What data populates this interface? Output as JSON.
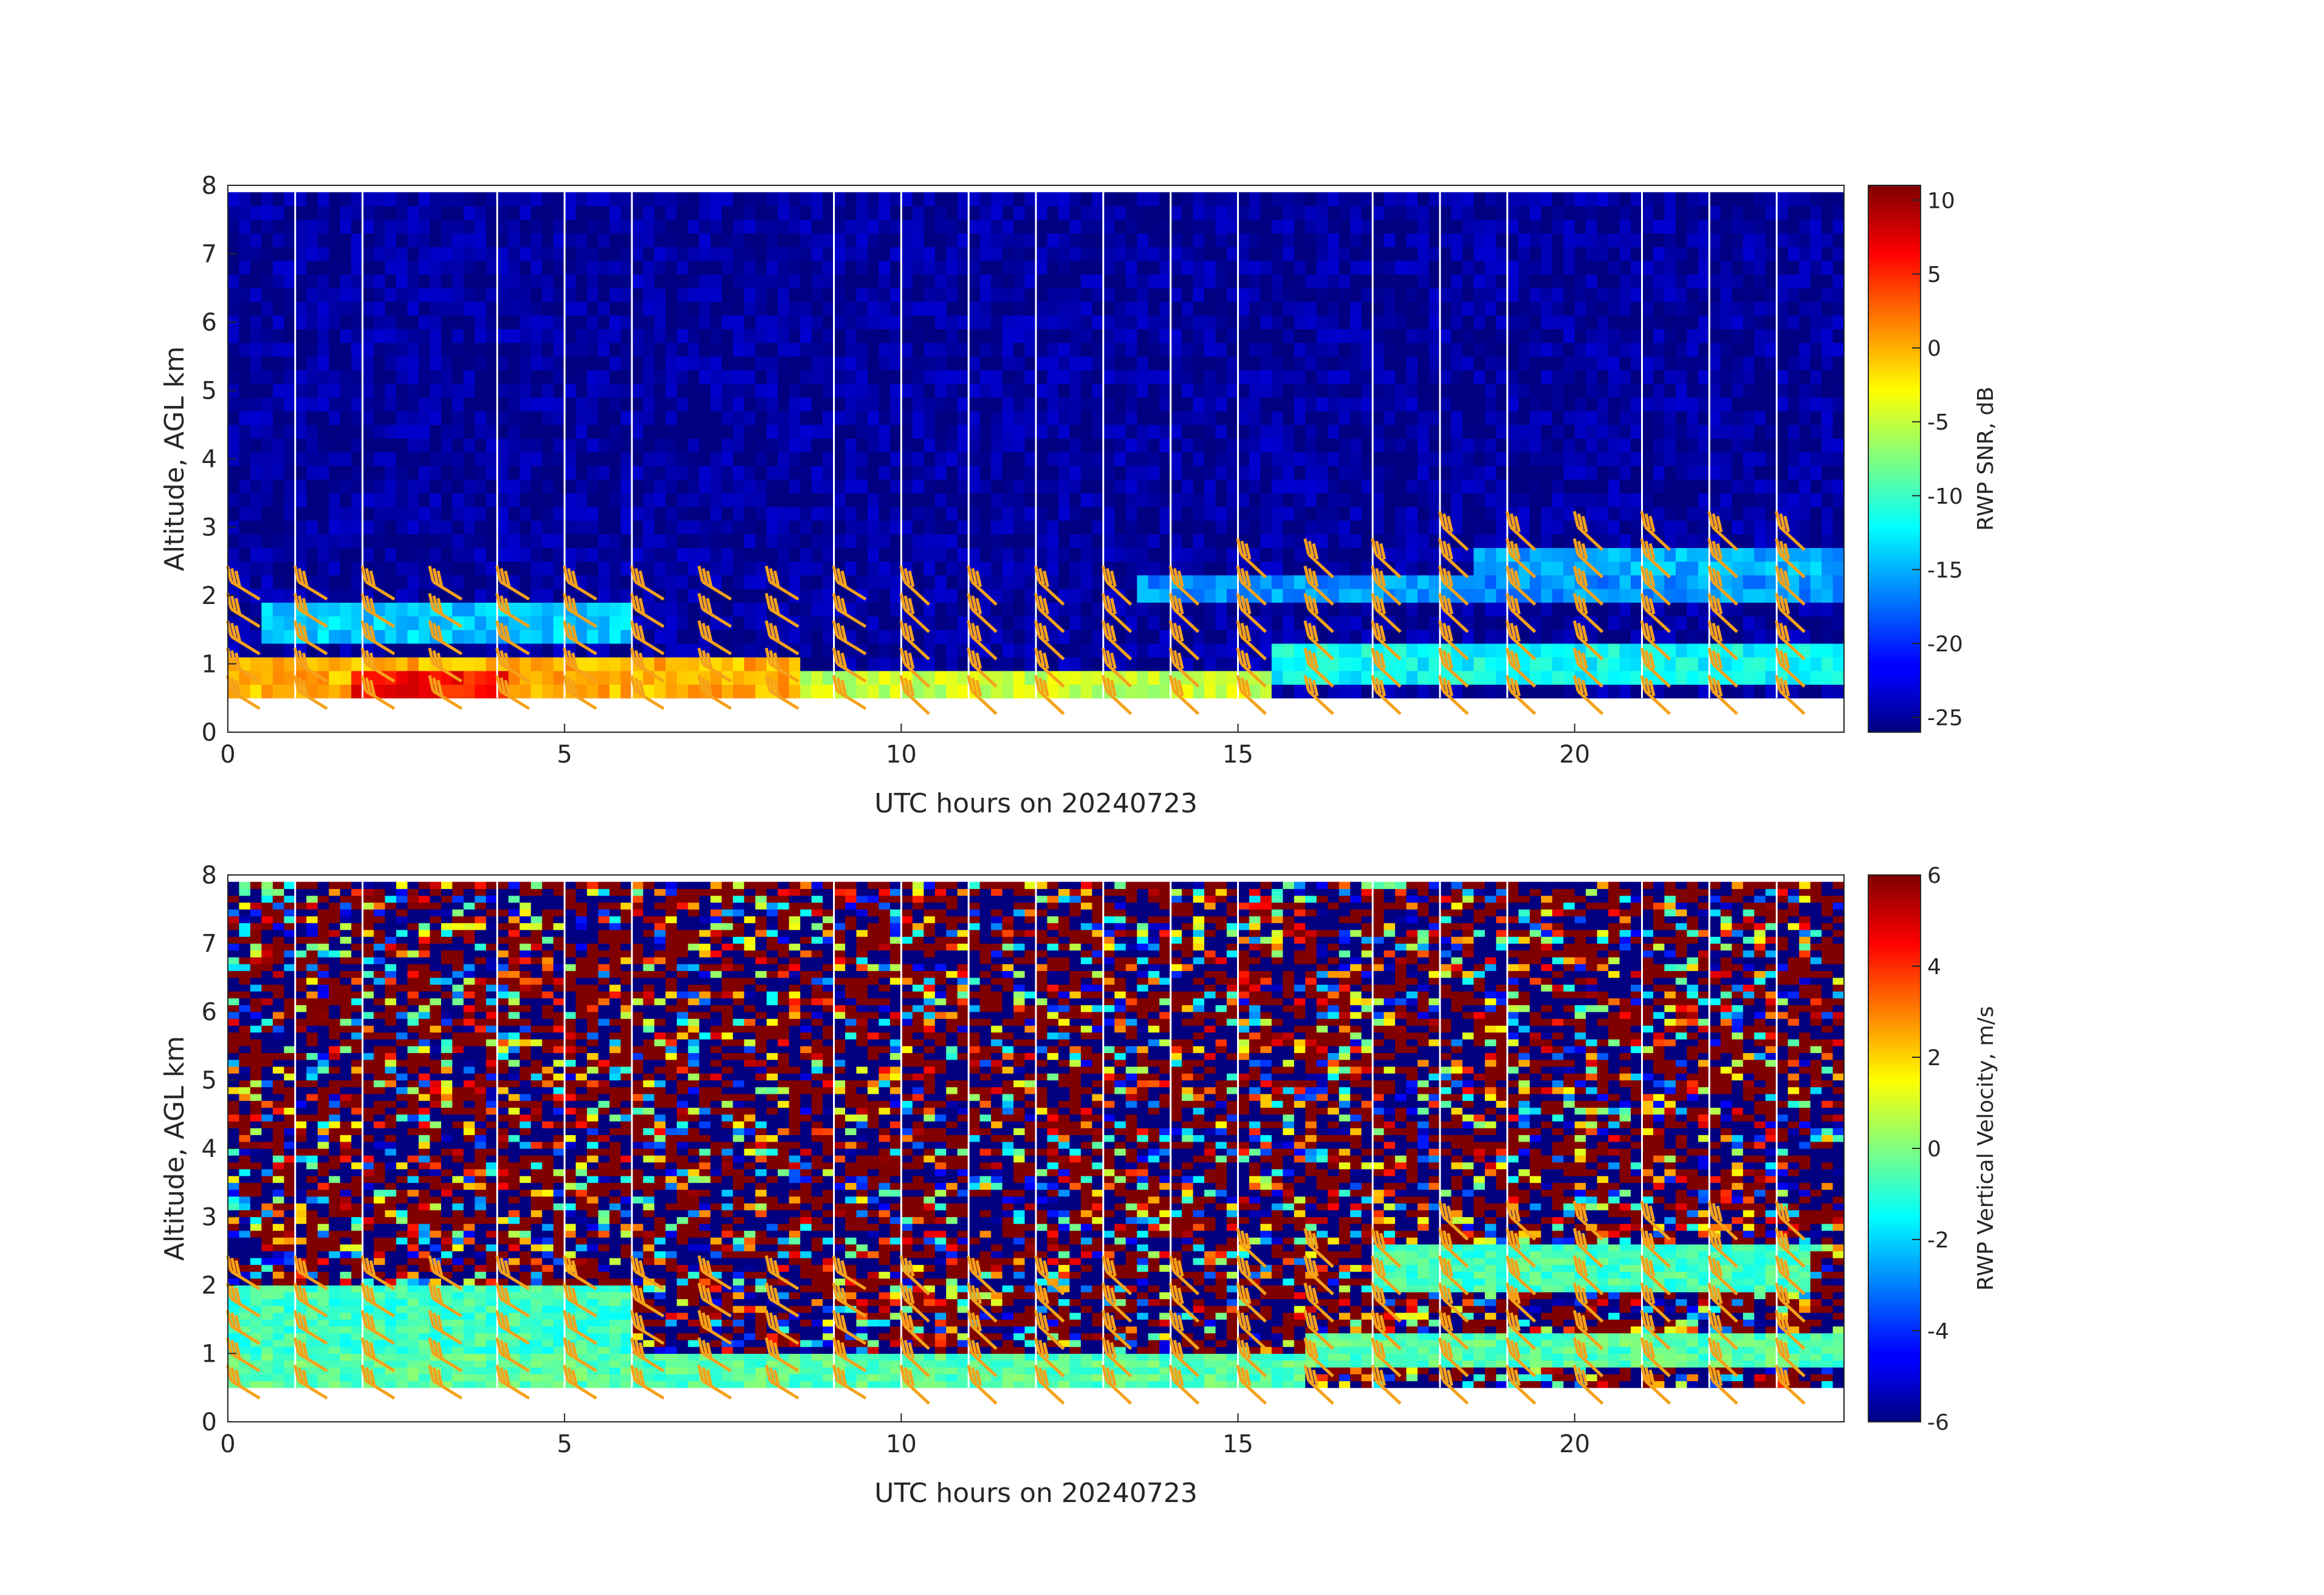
{
  "chart_data": [
    {
      "type": "heatmap",
      "title": "",
      "xlabel": "UTC hours on 20240723",
      "ylabel": "Altitude, AGL km",
      "xlim": [
        0,
        24
      ],
      "ylim": [
        0,
        8
      ],
      "x_ticks": [
        "0",
        "5",
        "10",
        "15",
        "20"
      ],
      "y_ticks": [
        "0",
        "1",
        "2",
        "3",
        "4",
        "5",
        "6",
        "7",
        "8"
      ],
      "data_range_altitude_km": [
        0.5,
        7.9
      ],
      "gap_hours": [
        1,
        2,
        4,
        5,
        6,
        9,
        10,
        11,
        12,
        13,
        14,
        15,
        17,
        18,
        19,
        21,
        22,
        23
      ],
      "colorbar": {
        "label": "RWP SNR, dB",
        "range": [
          -26,
          11
        ],
        "ticks": [
          "10",
          "5",
          "0",
          "-5",
          "-10",
          "-15",
          "-20",
          "-25"
        ],
        "colormap": "jet"
      },
      "overlay": "wind barbs",
      "barb_color": "#f5a21b",
      "regions": [
        {
          "x": [
            0,
            24
          ],
          "y": [
            0.5,
            7.9
          ],
          "value": -25
        },
        {
          "x": [
            0,
            8.5
          ],
          "y": [
            0.5,
            1.0
          ],
          "value": 0
        },
        {
          "x": [
            1.8,
            4.2
          ],
          "y": [
            0.5,
            0.8
          ],
          "value": 6
        },
        {
          "x": [
            8.5,
            15.5
          ],
          "y": [
            0.5,
            0.8
          ],
          "value": -5
        },
        {
          "x": [
            0.5,
            6.0
          ],
          "y": [
            1.4,
            1.9
          ],
          "value": -14
        },
        {
          "x": [
            15.5,
            24
          ],
          "y": [
            0.8,
            1.3
          ],
          "value": -12
        },
        {
          "x": [
            18.5,
            24
          ],
          "y": [
            2.0,
            2.6
          ],
          "value": -15
        },
        {
          "x": [
            13.5,
            24
          ],
          "y": [
            1.9,
            2.3
          ],
          "value": -16
        }
      ]
    },
    {
      "type": "heatmap",
      "title": "",
      "xlabel": "UTC hours on 20240723",
      "ylabel": "Altitude, AGL km",
      "xlim": [
        0,
        24
      ],
      "ylim": [
        0,
        8
      ],
      "x_ticks": [
        "0",
        "5",
        "10",
        "15",
        "20"
      ],
      "y_ticks": [
        "0",
        "1",
        "2",
        "3",
        "4",
        "5",
        "6",
        "7",
        "8"
      ],
      "data_range_altitude_km": [
        0.5,
        7.9
      ],
      "gap_hours": [
        1,
        2,
        4,
        5,
        6,
        9,
        10,
        11,
        12,
        13,
        14,
        15,
        17,
        18,
        19,
        21,
        22,
        23
      ],
      "colorbar": {
        "label": "RWP Vertical Velocity, m/s",
        "range": [
          -6,
          6
        ],
        "ticks": [
          "6",
          "4",
          "2",
          "0",
          "-2",
          "-4",
          "-6"
        ],
        "colormap": "jet"
      },
      "overlay": "wind barbs",
      "barb_color": "#f5a21b",
      "regions": [
        {
          "x": [
            0,
            24
          ],
          "y": [
            0.5,
            7.9
          ],
          "value": "noise -6..6"
        },
        {
          "x": [
            0,
            16
          ],
          "y": [
            0.5,
            1.0
          ],
          "value": -0.5
        },
        {
          "x": [
            0,
            6
          ],
          "y": [
            1.0,
            2.0
          ],
          "value": -0.8
        },
        {
          "x": [
            16,
            24
          ],
          "y": [
            0.8,
            1.3
          ],
          "value": -0.5
        },
        {
          "x": [
            17,
            23.5
          ],
          "y": [
            1.9,
            2.6
          ],
          "value": -0.7
        }
      ]
    }
  ]
}
